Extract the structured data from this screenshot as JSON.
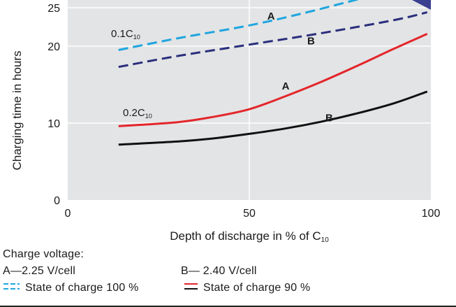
{
  "chart_data": {
    "type": "line",
    "xlabel": "Depth of discharge in % of C",
    "xlabel_sub": "10",
    "ylabel": "Charging time in hours",
    "xlim": [
      0,
      100
    ],
    "ylim": [
      0,
      26
    ],
    "x_ticks": [
      "0",
      "50",
      "100"
    ],
    "y_ticks": [
      "0",
      "10",
      "20",
      "25"
    ],
    "grid": true,
    "background_color": "#e3e4e5",
    "curve_labels": {
      "c01": {
        "main": "0.1C",
        "sub": "10"
      },
      "c02": {
        "main": "0.2C",
        "sub": "10"
      }
    },
    "series": [
      {
        "label": "A",
        "group": "0.1C10",
        "style": "dashed",
        "color": "#1fa6e0",
        "x": [
          14,
          30,
          50,
          65,
          80
        ],
        "y": [
          19.5,
          21,
          22.7,
          24.3,
          26.1
        ]
      },
      {
        "label": "B",
        "group": "0.1C10",
        "style": "dashed",
        "color": "#2a2e7c",
        "x": [
          14,
          30,
          50,
          70,
          90,
          99
        ],
        "y": [
          17.3,
          18.7,
          20.2,
          21.7,
          23.4,
          24.4
        ]
      },
      {
        "label": "A",
        "group": "0.2C10",
        "style": "solid",
        "color": "#e3262b",
        "x": [
          14,
          30,
          40,
          50,
          60,
          70,
          80,
          90,
          99
        ],
        "y": [
          9.6,
          10.1,
          10.8,
          11.8,
          13.5,
          15.4,
          17.5,
          19.7,
          21.6
        ]
      },
      {
        "label": "B",
        "group": "0.2C10",
        "style": "solid",
        "color": "#111111",
        "x": [
          14,
          30,
          40,
          50,
          60,
          70,
          80,
          90,
          99
        ],
        "y": [
          7.2,
          7.6,
          8.0,
          8.6,
          9.3,
          10.2,
          11.3,
          12.6,
          14.1
        ]
      }
    ],
    "series_labels": [
      {
        "text": "A",
        "x": 56,
        "y": 23.9
      },
      {
        "text": "B",
        "x": 67,
        "y": 20.7
      },
      {
        "text": "A",
        "x": 60,
        "y": 14.8
      },
      {
        "text": "B",
        "x": 72,
        "y": 10.7
      }
    ]
  },
  "legend": {
    "title": "Charge voltage:",
    "a_text": "A—2.25 V/cell",
    "b_text": "B— 2.40 V/cell",
    "soc100_text": "State of charge 100 %",
    "soc90_text": "State of charge 90 %",
    "soc100_color": "#1fa6e0",
    "soc90_color": "#e3262b"
  }
}
